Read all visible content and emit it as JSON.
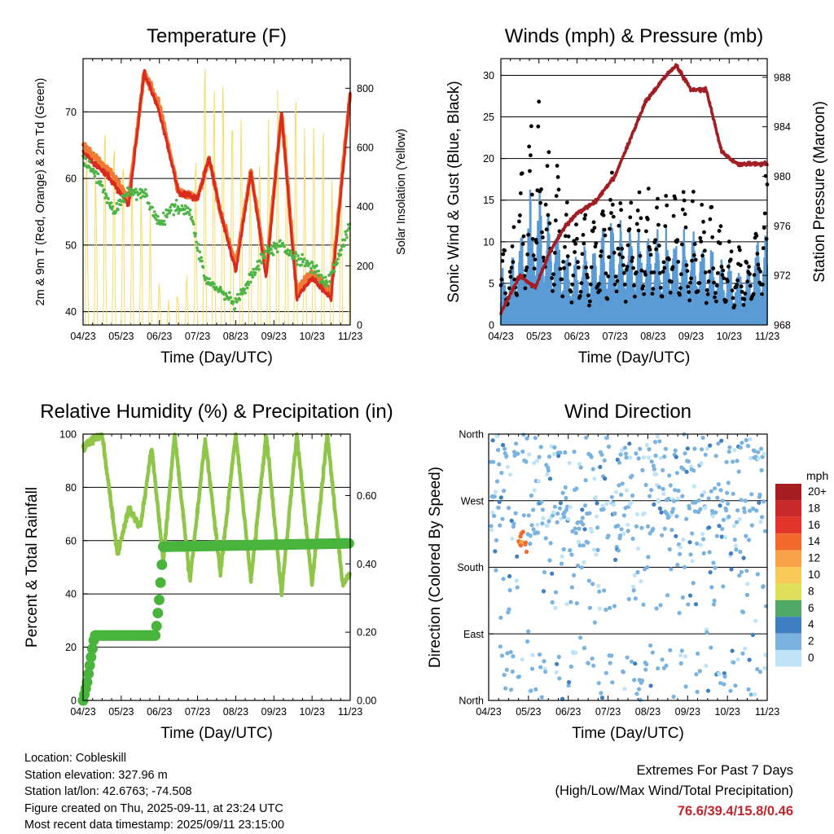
{
  "colors": {
    "t2m": "#d92a22",
    "t9m": "#f07a33",
    "td": "#4db446",
    "solar": "#f5dc6a",
    "sonic": "#5b9bd5",
    "gust": "#000000",
    "pressure": "#a31d24",
    "rh": "#8fc649",
    "precip": "#49b43c",
    "extremes": "#c0262d"
  },
  "chart_data": [
    {
      "type": "line",
      "title": "Temperature (F)",
      "xlabel": "Time (Day/UTC)",
      "ylabel": "2m & 9m T (Red, Orange) & 2m Td (Green)",
      "y2label": "Solar Insolation (Yellow)",
      "x_ticks": [
        "04/23",
        "05/23",
        "06/23",
        "07/23",
        "08/23",
        "09/23",
        "10/23",
        "11/23"
      ],
      "ylim": [
        38,
        78
      ],
      "y_ticks": [
        40,
        50,
        60,
        70
      ],
      "y2lim": [
        0,
        900
      ],
      "y2_ticks": [
        0,
        200,
        400,
        600,
        800
      ],
      "grid": true,
      "series": [
        {
          "name": "2m T",
          "color": "red",
          "x": [
            0,
            0.7,
            1.2,
            1.6,
            2.0,
            2.5,
            3.0,
            3.3,
            3.6,
            4.0,
            4.4,
            4.8,
            5.2,
            5.6,
            6.0,
            6.5,
            7.0
          ],
          "y": [
            64,
            60,
            56,
            76,
            70,
            58,
            57,
            63,
            55,
            46,
            61,
            45,
            70,
            42,
            45,
            42,
            73
          ]
        },
        {
          "name": "9m T",
          "color": "orange",
          "x": [
            0,
            0.7,
            1.2,
            1.6,
            2.0,
            2.5,
            3.0,
            3.3,
            3.6,
            4.0,
            4.4,
            4.8,
            5.2,
            5.6,
            6.0,
            6.5,
            7.0
          ],
          "y": [
            65,
            61,
            57,
            76,
            71,
            58,
            57,
            63,
            55,
            47,
            61,
            46,
            70,
            43,
            46,
            43,
            73
          ]
        },
        {
          "name": "2m Td",
          "color": "green",
          "x": [
            0,
            0.4,
            0.8,
            1.2,
            1.6,
            2.0,
            2.4,
            2.8,
            3.2,
            3.6,
            4.0,
            4.4,
            4.8,
            5.2,
            5.6,
            6.0,
            6.4,
            7.0
          ],
          "y": [
            63,
            60,
            55,
            58,
            58,
            53,
            56,
            55,
            45,
            43,
            41,
            45,
            49,
            50,
            48,
            47,
            44,
            53
          ]
        },
        {
          "name": "Solar Insolation",
          "color": "yellow",
          "axis": "y2",
          "x": [
            0.7,
            1.2,
            1.6,
            2.1,
            2.7,
            3.2,
            3.8,
            4.3,
            4.8,
            5.3,
            5.8,
            6.3,
            6.8
          ],
          "y": [
            600,
            500,
            450,
            50,
            150,
            890,
            870,
            620,
            680,
            710,
            660,
            690,
            550
          ]
        }
      ]
    },
    {
      "type": "line",
      "title": "Winds (mph) & Pressure (mb)",
      "xlabel": "Time (Day/UTC)",
      "ylabel": "Sonic Wind & Gust (Blue, Black)",
      "y2label": "Station Pressure (Maroon)",
      "x_ticks": [
        "04/23",
        "05/23",
        "06/23",
        "07/23",
        "08/23",
        "09/23",
        "10/23",
        "11/23"
      ],
      "ylim": [
        0,
        32
      ],
      "y_ticks": [
        0,
        5,
        10,
        15,
        20,
        25,
        30
      ],
      "y2lim": [
        968,
        989.5
      ],
      "y2_ticks": [
        968,
        972,
        976,
        980,
        984,
        988
      ],
      "grid": true,
      "series": [
        {
          "name": "Pressure",
          "color": "maroon",
          "axis": "y2",
          "x": [
            0,
            0.5,
            0.9,
            1.3,
            1.7,
            2.0,
            2.5,
            3.0,
            3.4,
            3.8,
            4.3,
            4.6,
            5.0,
            5.4,
            5.8,
            6.2,
            6.6,
            7.0
          ],
          "y": [
            969,
            972,
            971,
            974,
            976,
            977,
            978,
            980,
            983,
            986,
            988,
            989,
            987,
            987,
            982,
            981,
            981,
            981
          ]
        },
        {
          "name": "Gust peaks",
          "color": "black",
          "x": [
            0.2,
            0.9,
            1.9,
            2.9,
            3.8,
            4.8,
            5.7,
            6.5,
            6.9
          ],
          "y": [
            10,
            29.5,
            12,
            17,
            16,
            16,
            13,
            9,
            18
          ]
        },
        {
          "name": "Sonic peaks",
          "color": "blue",
          "x": [
            0.2,
            0.9,
            1.9,
            2.9,
            3.8,
            4.8,
            5.7,
            6.5,
            6.9
          ],
          "y": [
            6,
            16,
            7,
            11,
            10,
            10,
            8,
            6,
            11
          ]
        }
      ]
    },
    {
      "type": "line",
      "title": "Relative Humidity (%) & Precipitation (in)",
      "xlabel": "Time (Day/UTC)",
      "ylabel": "Percent & Total Rainfall",
      "x_ticks": [
        "04/23",
        "05/23",
        "06/23",
        "07/23",
        "08/23",
        "09/23",
        "10/23",
        "11/23"
      ],
      "ylim": [
        0,
        100
      ],
      "y_ticks": [
        0,
        20,
        40,
        60,
        80,
        100
      ],
      "y2lim": [
        0,
        0.78
      ],
      "y2_ticks": [
        "0.00",
        "0.20",
        "0.40",
        "0.60"
      ],
      "grid": true,
      "series": [
        {
          "name": "RH",
          "color": "lightgreen",
          "x": [
            0,
            0.5,
            0.9,
            1.2,
            1.5,
            1.8,
            2.1,
            2.4,
            2.8,
            3.2,
            3.6,
            4.0,
            4.4,
            4.8,
            5.2,
            5.6,
            6.0,
            6.4,
            6.8,
            7.0
          ],
          "y": [
            95,
            100,
            55,
            72,
            65,
            95,
            52,
            100,
            45,
            98,
            48,
            100,
            45,
            100,
            40,
            100,
            44,
            100,
            44,
            48
          ]
        },
        {
          "name": "Total Precipitation",
          "color": "green",
          "axis": "y2",
          "x": [
            0,
            0.1,
            0.2,
            0.3,
            1.9,
            2.0,
            2.1,
            7.0
          ],
          "y": [
            0.0,
            0.05,
            0.12,
            0.19,
            0.19,
            0.3,
            0.45,
            0.46
          ]
        }
      ]
    },
    {
      "type": "scatter",
      "title": "Wind Direction",
      "xlabel": "Time (Day/UTC)",
      "ylabel": "Direction (Colored By Speed)",
      "x_ticks": [
        "04/23",
        "05/23",
        "06/23",
        "07/23",
        "08/23",
        "09/23",
        "10/23",
        "11/23"
      ],
      "y_ticks": [
        "North",
        "East",
        "South",
        "West",
        "North"
      ],
      "grid": true,
      "legend_title": "mph",
      "legend_labels": [
        "20+",
        "18",
        "16",
        "14",
        "12",
        "10",
        "8",
        "6",
        "4",
        "2",
        "0"
      ],
      "legend_colors": [
        "#a51c21",
        "#c82a2a",
        "#e2362a",
        "#f26a2b",
        "#f8a24a",
        "#f9c95a",
        "#dfe05a",
        "#4fa865",
        "#3f7fc1",
        "#7ab3e0",
        "#bfe3f7"
      ],
      "legend_position": "right"
    }
  ],
  "info": {
    "location": "Location: Cobleskill",
    "elevation": "Station elevation: 327.96 m",
    "latlon": "Station lat/lon: 42.6763; -74.508",
    "created": "Figure created on Thu, 2025-09-11, at 23:24 UTC",
    "recent": "Most recent data timestamp: 2025/09/11 23:15:00"
  },
  "extremes": {
    "title": "Extremes For Past 7 Days",
    "subtitle": "(High/Low/Max Wind/Total Precipitation)",
    "values": "76.6/39.4/15.8/0.46"
  }
}
